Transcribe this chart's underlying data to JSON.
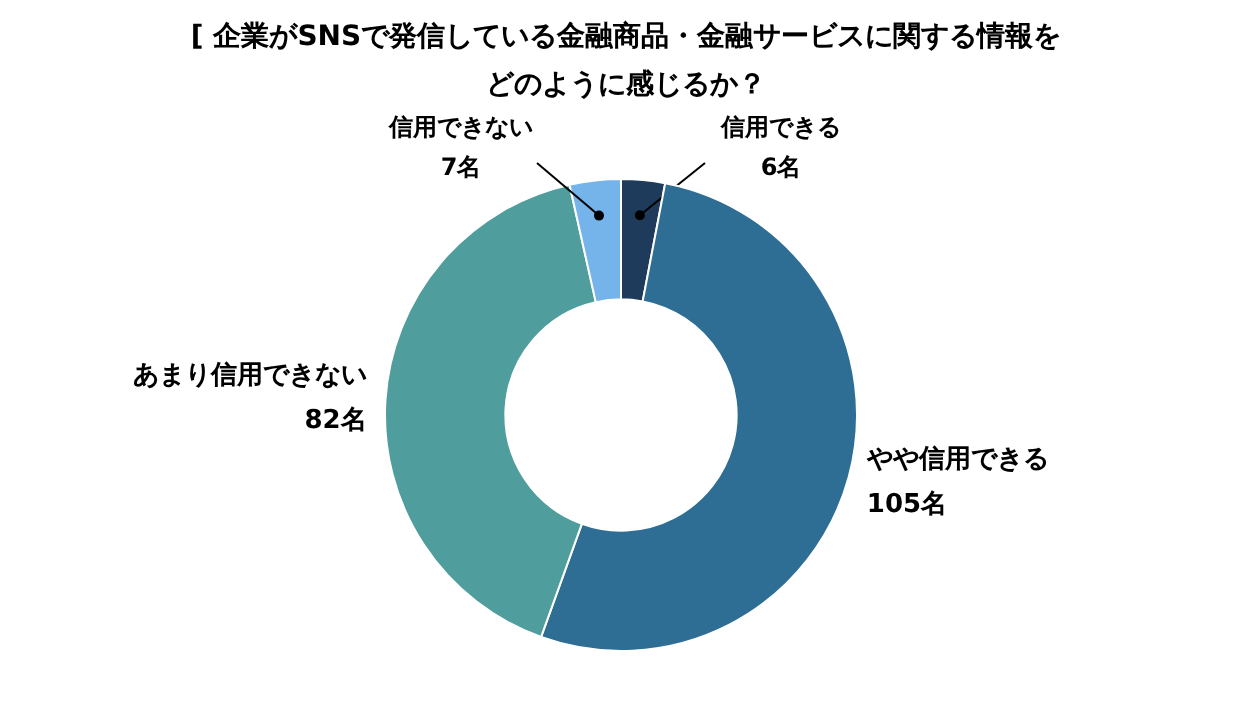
{
  "chart_data": {
    "type": "donut",
    "title": "[ 企業がSNSで発信している金融商品・金融サービスに関する情報をどのように感じるか？",
    "categories": [
      "信用できる",
      "やや信用できる",
      "あまり信用できない",
      "信用できない"
    ],
    "values": [
      6,
      105,
      82,
      7
    ],
    "colors": [
      "#1f3b5c",
      "#2e6e94",
      "#4f9d9d",
      "#74b4ea"
    ],
    "value_labels": [
      "6名",
      "105名",
      "82名",
      "7名"
    ]
  }
}
